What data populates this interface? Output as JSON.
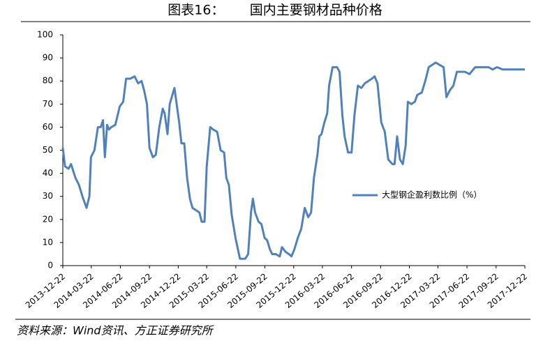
{
  "chart_data": {
    "type": "line",
    "title": "图表16：      国内主要钢材品种价格",
    "source": "资料来源：Wind资讯、方正证券研究所",
    "x": [
      "2013-12-22",
      "2013-12-29",
      "2014-01-09",
      "2014-01-17",
      "2014-01-31",
      "2014-02-11",
      "2014-02-22",
      "2014-03-07",
      "2014-03-16",
      "2014-03-21",
      "2014-04-01",
      "2014-04-12",
      "2014-04-21",
      "2014-04-28",
      "2014-05-04",
      "2014-05-11",
      "2014-05-17",
      "2014-05-24",
      "2014-06-06",
      "2014-06-20",
      "2014-07-01",
      "2014-07-10",
      "2014-07-23",
      "2014-08-06",
      "2014-08-17",
      "2014-08-28",
      "2014-09-05",
      "2014-09-14",
      "2014-09-22",
      "2014-10-03",
      "2014-10-12",
      "2014-10-23",
      "2014-11-03",
      "2014-11-09",
      "2014-11-18",
      "2014-11-25",
      "2014-12-10",
      "2014-12-17",
      "2014-12-25",
      "2015-01-01",
      "2015-01-10",
      "2015-01-19",
      "2015-01-28",
      "2015-02-05",
      "2015-02-16",
      "2015-02-27",
      "2015-03-06",
      "2015-03-15",
      "2015-03-22",
      "2015-04-02",
      "2015-04-11",
      "2015-04-24",
      "2015-05-05",
      "2015-05-16",
      "2015-05-23",
      "2015-05-31",
      "2015-06-09",
      "2015-06-21",
      "2015-07-05",
      "2015-07-22",
      "2015-07-31",
      "2015-08-09",
      "2015-08-15",
      "2015-08-22",
      "2015-09-02",
      "2015-09-11",
      "2015-09-21",
      "2015-09-29",
      "2015-10-08",
      "2015-10-15",
      "2015-10-26",
      "2015-11-08",
      "2015-11-15",
      "2015-11-26",
      "2015-12-07",
      "2015-12-15",
      "2015-12-24",
      "2016-01-04",
      "2016-01-15",
      "2016-01-26",
      "2016-02-06",
      "2016-02-15",
      "2016-02-24",
      "2016-03-06",
      "2016-03-12",
      "2016-03-19",
      "2016-03-28",
      "2016-04-06",
      "2016-04-12",
      "2016-04-23",
      "2016-05-07",
      "2016-05-15",
      "2016-05-24",
      "2016-05-31",
      "2016-06-11",
      "2016-06-22",
      "2016-07-01",
      "2016-07-12",
      "2016-07-23",
      "2016-08-03",
      "2016-08-14",
      "2016-08-25",
      "2016-09-03",
      "2016-09-12",
      "2016-09-24",
      "2016-10-05",
      "2016-10-16",
      "2016-10-29",
      "2016-11-05",
      "2016-11-13",
      "2016-11-22",
      "2016-12-01",
      "2016-12-10",
      "2016-12-17",
      "2016-12-28",
      "2017-01-08",
      "2017-01-16",
      "2017-01-30",
      "2017-02-10",
      "2017-02-21",
      "2017-03-04",
      "2017-03-15",
      "2017-03-27",
      "2017-04-09",
      "2017-04-18",
      "2017-04-29",
      "2017-05-10",
      "2017-05-21",
      "2017-06-01",
      "2017-06-15",
      "2017-06-30",
      "2017-07-18",
      "2017-08-07",
      "2017-08-29",
      "2017-09-11",
      "2017-09-25",
      "2017-10-13",
      "2017-11-04",
      "2017-11-26",
      "2017-12-22"
    ],
    "series": [
      {
        "name": "大型钢企盈利数比例（%）",
        "color": "#4f81bd",
        "values": [
          51,
          43,
          42,
          44,
          38,
          35,
          30,
          25,
          30,
          47,
          50,
          60,
          60,
          63,
          47,
          61,
          59,
          60,
          61,
          69,
          71,
          81,
          81,
          82,
          79,
          80,
          76,
          70,
          51,
          47,
          48,
          60,
          68,
          66,
          57,
          70,
          77,
          70,
          62,
          53,
          53,
          38,
          29,
          25,
          24,
          23,
          19,
          19,
          43,
          60,
          59,
          58,
          50,
          49,
          38,
          35,
          22,
          12,
          3,
          3,
          5,
          23,
          29,
          23,
          19,
          18,
          12,
          11,
          7,
          5,
          5,
          4,
          8,
          6,
          5,
          4,
          7,
          12,
          16,
          25,
          21,
          23,
          38,
          48,
          56,
          57,
          62,
          66,
          78,
          86,
          86,
          84,
          65,
          56,
          49,
          49,
          65,
          78,
          77,
          79,
          80,
          81,
          82,
          79,
          62,
          58,
          46,
          44,
          44,
          56,
          46,
          44,
          52,
          71,
          70,
          71,
          74,
          75,
          80,
          86,
          87,
          88,
          87,
          86,
          73,
          76,
          78,
          84,
          84,
          84,
          83,
          86,
          86,
          86,
          85,
          86,
          85,
          85,
          85,
          85
        ]
      }
    ],
    "xlim": [
      "2013-12-22",
      "2017-12-22"
    ],
    "xticks": [
      "2013-12-22",
      "2014-03-22",
      "2014-06-22",
      "2014-09-22",
      "2014-12-22",
      "2015-03-22",
      "2015-06-22",
      "2015-09-22",
      "2015-12-22",
      "2016-03-22",
      "2016-06-22",
      "2016-09-22",
      "2016-12-22",
      "2017-03-22",
      "2017-06-22",
      "2017-09-22",
      "2017-12-22"
    ],
    "ylim": [
      0,
      100
    ],
    "yticks": [
      0,
      10,
      20,
      30,
      40,
      50,
      60,
      70,
      80,
      90,
      100
    ],
    "legend": "right",
    "grid": false
  }
}
